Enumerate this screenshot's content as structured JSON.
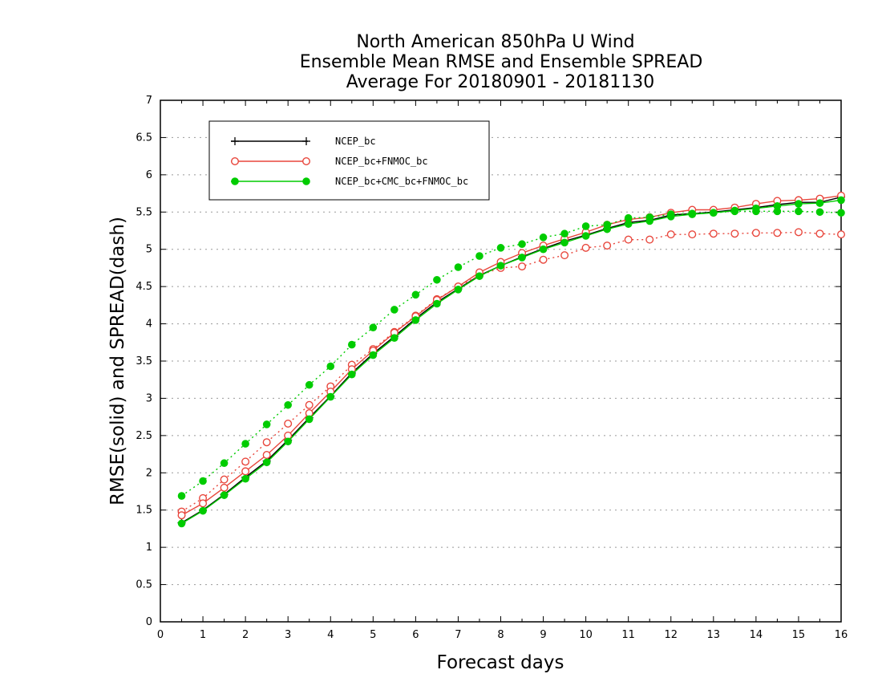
{
  "chart_data": {
    "type": "line",
    "title_lines": [
      "North American 850hPa U Wind",
      "Ensemble Mean RMSE and Ensemble SPREAD",
      "Average For 20180901 - 20181130"
    ],
    "xlabel": "Forecast days",
    "ylabel": "RMSE(solid) and SPREAD(dash)",
    "xlim": [
      0,
      16
    ],
    "ylim": [
      0,
      7
    ],
    "x_ticks": [
      "0",
      "1",
      "2",
      "3",
      "4",
      "5",
      "6",
      "7",
      "8",
      "9",
      "10",
      "11",
      "12",
      "13",
      "14",
      "15",
      "16"
    ],
    "y_ticks": [
      "0",
      "0.5",
      "1",
      "1.5",
      "2",
      "2.5",
      "3",
      "3.5",
      "4",
      "4.5",
      "5",
      "5.5",
      "6",
      "6.5",
      "7"
    ],
    "grid": "horizontal-dotted",
    "legend_position": "top-left",
    "x": [
      0.5,
      1,
      1.5,
      2,
      2.5,
      3,
      3.5,
      4,
      4.5,
      5,
      5.5,
      6,
      6.5,
      7,
      7.5,
      8,
      8.5,
      9,
      9.5,
      10,
      10.5,
      11,
      11.5,
      12,
      12.5,
      13,
      13.5,
      14,
      14.5,
      15,
      15.5,
      16
    ],
    "series": [
      {
        "name": "NCEP_bc",
        "color": "#000000",
        "marker": "plus",
        "rmse": [
          1.33,
          1.5,
          1.71,
          1.94,
          2.16,
          2.44,
          2.74,
          3.03,
          3.34,
          3.6,
          3.83,
          4.07,
          4.29,
          4.47,
          4.65,
          4.78,
          4.9,
          5.01,
          5.11,
          5.19,
          5.28,
          5.36,
          5.39,
          5.46,
          5.48,
          5.5,
          5.53,
          5.56,
          5.6,
          5.63,
          5.63,
          5.7
        ],
        "spread": []
      },
      {
        "name": "NCEP_bc+FNMOC_bc",
        "color": "#e8463c",
        "marker": "open-circle",
        "rmse": [
          1.43,
          1.59,
          1.8,
          2.02,
          2.24,
          2.5,
          2.8,
          3.09,
          3.39,
          3.64,
          3.88,
          4.1,
          4.32,
          4.5,
          4.69,
          4.83,
          4.95,
          5.05,
          5.14,
          5.23,
          5.33,
          5.4,
          5.43,
          5.49,
          5.53,
          5.53,
          5.56,
          5.61,
          5.65,
          5.66,
          5.68,
          5.72
        ],
        "spread": [
          1.48,
          1.66,
          1.91,
          2.15,
          2.41,
          2.66,
          2.91,
          3.16,
          3.45,
          3.66,
          3.89,
          4.11,
          4.33,
          4.5,
          4.65,
          4.75,
          4.77,
          4.86,
          4.92,
          5.02,
          5.05,
          5.13,
          5.13,
          5.2,
          5.2,
          5.21,
          5.21,
          5.22,
          5.22,
          5.23,
          5.21,
          5.2
        ]
      },
      {
        "name": "NCEP_bc+CMC_bc+FNMOC_bc",
        "color": "#00cc00",
        "marker": "filled-circle",
        "rmse": [
          1.32,
          1.49,
          1.7,
          1.92,
          2.14,
          2.42,
          2.72,
          3.02,
          3.32,
          3.58,
          3.81,
          4.05,
          4.27,
          4.46,
          4.64,
          4.78,
          4.89,
          5.0,
          5.09,
          5.18,
          5.27,
          5.34,
          5.38,
          5.44,
          5.47,
          5.49,
          5.52,
          5.55,
          5.58,
          5.61,
          5.62,
          5.66
        ],
        "spread": [
          1.69,
          1.89,
          2.13,
          2.39,
          2.65,
          2.91,
          3.18,
          3.43,
          3.72,
          3.95,
          4.19,
          4.39,
          4.59,
          4.76,
          4.91,
          5.02,
          5.07,
          5.16,
          5.21,
          5.31,
          5.33,
          5.42,
          5.43,
          5.47,
          5.48,
          5.49,
          5.51,
          5.51,
          5.51,
          5.51,
          5.5,
          5.49
        ]
      }
    ]
  }
}
